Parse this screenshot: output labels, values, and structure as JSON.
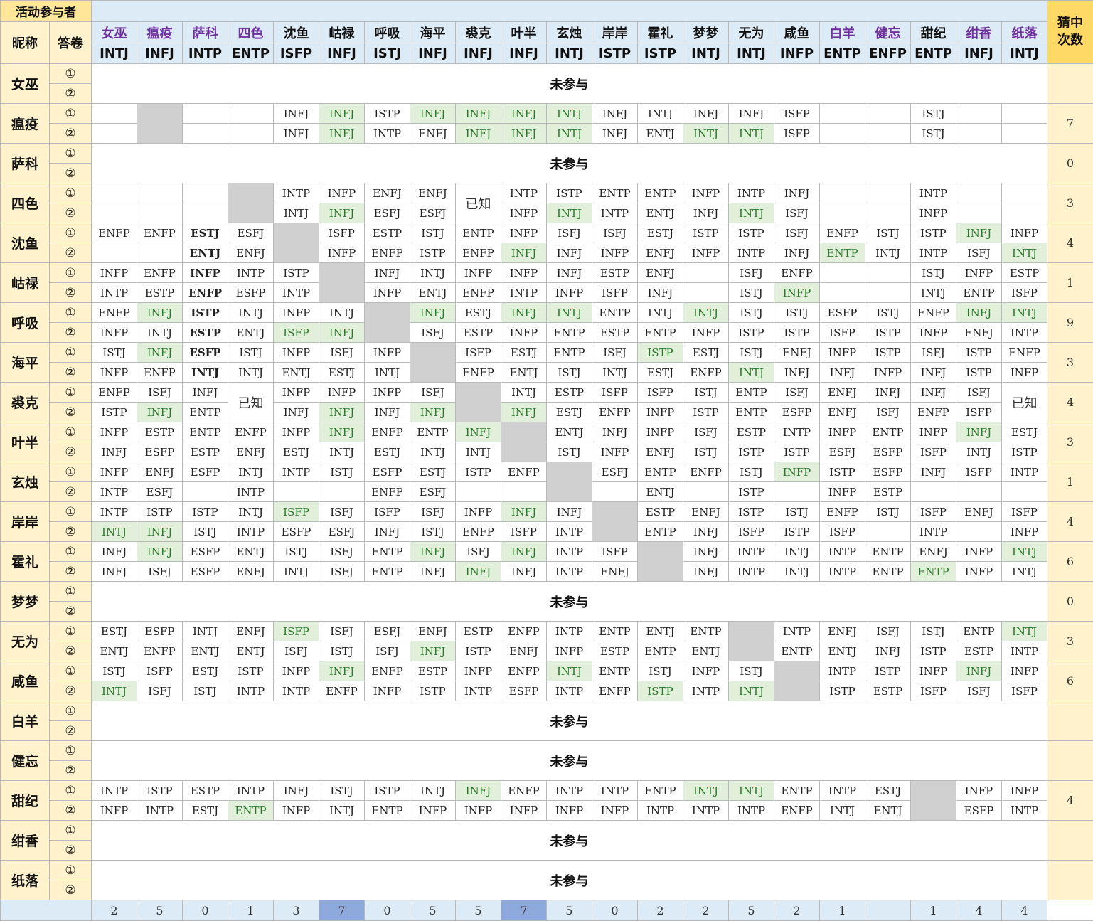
{
  "header": {
    "participants_title": "活动参与者",
    "nickname_label": "昵称",
    "answer_label": "答卷",
    "guess_label_line1": "猜中",
    "guess_label_line2": "次数",
    "absent_text": "未参与",
    "known_text": "已知",
    "answer_marks": [
      "①",
      "②"
    ]
  },
  "columns": [
    {
      "name": "女巫",
      "type": "INTJ",
      "purple": true
    },
    {
      "name": "瘟疫",
      "type": "INFJ",
      "purple": true
    },
    {
      "name": "萨科",
      "type": "INTP",
      "purple": true
    },
    {
      "name": "四色",
      "type": "ENTP",
      "purple": true
    },
    {
      "name": "沈鱼",
      "type": "ISFP",
      "purple": false
    },
    {
      "name": "岵禄",
      "type": "INFJ",
      "purple": false
    },
    {
      "name": "呼吸",
      "type": "ISTJ",
      "purple": false
    },
    {
      "name": "海平",
      "type": "INFJ",
      "purple": false
    },
    {
      "name": "裘克",
      "type": "INFJ",
      "purple": false
    },
    {
      "name": "叶半",
      "type": "INFJ",
      "purple": false
    },
    {
      "name": "玄烛",
      "type": "INTJ",
      "purple": false
    },
    {
      "name": "岸岸",
      "type": "ISTP",
      "purple": false
    },
    {
      "name": "霍礼",
      "type": "ISTP",
      "purple": false
    },
    {
      "name": "梦梦",
      "type": "INTJ",
      "purple": false
    },
    {
      "name": "无为",
      "type": "INTJ",
      "purple": false
    },
    {
      "name": "咸鱼",
      "type": "INFP",
      "purple": false
    },
    {
      "name": "白羊",
      "type": "ENTP",
      "purple": true
    },
    {
      "name": "健忘",
      "type": "ENFP",
      "purple": true
    },
    {
      "name": "甜纪",
      "type": "ENTP",
      "purple": false
    },
    {
      "name": "绀香",
      "type": "INFJ",
      "purple": true
    },
    {
      "name": "纸落",
      "type": "INTJ",
      "purple": true
    }
  ],
  "rows": [
    {
      "name": "女巫",
      "absent": true,
      "guess": ""
    },
    {
      "name": "瘟疫",
      "guess": "7",
      "self": 1,
      "a1": [
        "",
        "",
        "",
        "",
        "INFJ",
        "INFJ",
        "ISTP",
        "INFJ",
        "INFJ",
        "INFJ",
        "INTJ",
        "INFJ",
        "INTJ",
        "INFJ",
        "INFJ",
        "ISFP",
        "",
        "",
        "ISTJ",
        "",
        ""
      ],
      "a2": [
        "",
        "",
        "",
        "",
        "INFJ",
        "INFJ",
        "INTP",
        "ENFJ",
        "INFJ",
        "INFJ",
        "INTJ",
        "INFJ",
        "ENTJ",
        "INTJ",
        "INTJ",
        "ISFP",
        "",
        "",
        "ISTJ",
        "",
        ""
      ]
    },
    {
      "name": "萨科",
      "absent": true,
      "guess": "0"
    },
    {
      "name": "四色",
      "guess": "3",
      "self": 3,
      "known": [
        8
      ],
      "a1": [
        "",
        "",
        "",
        "",
        "INTP",
        "INFP",
        "ENFJ",
        "ENFJ",
        "",
        "INTP",
        "ISTP",
        "ENTP",
        "ENTP",
        "INFP",
        "INTP",
        "INFJ",
        "",
        "",
        "INTP",
        "",
        ""
      ],
      "a2": [
        "",
        "",
        "",
        "",
        "INTJ",
        "INFJ",
        "ESFJ",
        "ESFJ",
        "",
        "INFP",
        "INTJ",
        "INTP",
        "ENTJ",
        "INFJ",
        "INTJ",
        "ISFJ",
        "",
        "",
        "INFP",
        "",
        ""
      ]
    },
    {
      "name": "沈鱼",
      "guess": "4",
      "self": 4,
      "a1": [
        "ENFP",
        "ENFP",
        "ESTJ",
        "ESFJ",
        "",
        "ISFP",
        "ESTP",
        "ISTJ",
        "ENTP",
        "INFP",
        "ISFJ",
        "ISFJ",
        "ESTJ",
        "ISTP",
        "ISTP",
        "ISFJ",
        "ENFP",
        "ISTJ",
        "ISTP",
        "INFJ",
        "INFP"
      ],
      "a2": [
        "",
        "",
        "ENTJ",
        "ENFJ",
        "",
        "INFP",
        "ENFP",
        "ISTP",
        "ENFP",
        "INFJ",
        "INFJ",
        "INFP",
        "ENFJ",
        "INFP",
        "INTP",
        "INFJ",
        "ENTP",
        "INTJ",
        "INTP",
        "ISFJ",
        "INTJ"
      ]
    },
    {
      "name": "岵禄",
      "guess": "1",
      "self": 5,
      "a1": [
        "INFP",
        "ENFP",
        "INFP",
        "INTP",
        "ISTP",
        "",
        "INFJ",
        "INTJ",
        "INFP",
        "INFP",
        "INFJ",
        "ESTP",
        "ENFJ",
        "",
        "ISFJ",
        "ENFP",
        "",
        "",
        "ISTJ",
        "INFP",
        "ESTP"
      ],
      "a2": [
        "INTP",
        "ESTP",
        "ENFP",
        "ESFP",
        "INTP",
        "",
        "INFP",
        "ENTJ",
        "ENFP",
        "INTP",
        "INFP",
        "ISFP",
        "INFJ",
        "",
        "ISTJ",
        "INFP",
        "",
        "",
        "INTJ",
        "ENTP",
        "ISFP"
      ]
    },
    {
      "name": "呼吸",
      "guess": "9",
      "self": 6,
      "a1": [
        "ENFP",
        "INFJ",
        "ISTP",
        "INTJ",
        "INFP",
        "INTJ",
        "",
        "INFJ",
        "ESTJ",
        "INFJ",
        "INTJ",
        "ENTP",
        "INTJ",
        "INTJ",
        "ISTJ",
        "ISTJ",
        "ESFP",
        "ISTJ",
        "ENFP",
        "INFJ",
        "INTJ"
      ],
      "a2": [
        "INFP",
        "INTJ",
        "ESTP",
        "ENTJ",
        "ISFP",
        "INFJ",
        "",
        "ISFJ",
        "ESTP",
        "INFP",
        "ENTP",
        "ESTP",
        "ENTP",
        "INFP",
        "ISTP",
        "ISTP",
        "ISFP",
        "ISTP",
        "INFP",
        "ENFJ",
        "INTP"
      ]
    },
    {
      "name": "海平",
      "guess": "3",
      "self": 7,
      "a1": [
        "ISTJ",
        "INFJ",
        "ESFP",
        "ISTJ",
        "INFP",
        "ISFJ",
        "INFP",
        "",
        "ISFP",
        "ESTJ",
        "ENTP",
        "ISFJ",
        "ISTP",
        "ESTJ",
        "ISTJ",
        "ENFJ",
        "INFP",
        "ISTP",
        "ISFJ",
        "ISTP",
        "ENFP"
      ],
      "a2": [
        "INFP",
        "ENFP",
        "INTJ",
        "INTJ",
        "ENTJ",
        "ESTJ",
        "INTJ",
        "",
        "ENFP",
        "ENTJ",
        "ISTJ",
        "INTJ",
        "ESTJ",
        "ENFP",
        "INTJ",
        "INFJ",
        "INFJ",
        "INFP",
        "INFJ",
        "ISTP",
        "INFP"
      ]
    },
    {
      "name": "裘克",
      "guess": "4",
      "self": 8,
      "known": [
        3,
        20
      ],
      "a1": [
        "ENFP",
        "ISFJ",
        "INFJ",
        "",
        "INFP",
        "INFP",
        "INFP",
        "ISFJ",
        "",
        "INTJ",
        "ESTP",
        "ISFP",
        "ISFP",
        "ISTJ",
        "ENTP",
        "ISFJ",
        "ENFJ",
        "INFJ",
        "INFJ",
        "ISFJ",
        ""
      ],
      "a2": [
        "ISTP",
        "INFJ",
        "ENTP",
        "",
        "INFJ",
        "INFJ",
        "INFJ",
        "INFJ",
        "",
        "INFJ",
        "ESTJ",
        "ENFP",
        "INFP",
        "ISTP",
        "ENTP",
        "ESFP",
        "ENFJ",
        "ISFJ",
        "ENFP",
        "ISFP",
        ""
      ]
    },
    {
      "name": "叶半",
      "guess": "3",
      "self": 9,
      "a1": [
        "INFP",
        "ESTP",
        "ENTP",
        "ENFP",
        "INFP",
        "INFJ",
        "ENFP",
        "ENTP",
        "INFJ",
        "",
        "ENTJ",
        "INFJ",
        "INFP",
        "ISFJ",
        "ESTP",
        "INTP",
        "INFP",
        "ENTP",
        "INFP",
        "INFJ",
        "ESTJ"
      ],
      "a2": [
        "INFJ",
        "ESFP",
        "ESTP",
        "ENFJ",
        "ESTJ",
        "INTJ",
        "ESTJ",
        "INTJ",
        "INTJ",
        "",
        "ISTJ",
        "INFP",
        "ENFJ",
        "ISTJ",
        "ISTP",
        "ISTP",
        "ESFJ",
        "ESFP",
        "ISFP",
        "INTJ",
        "ISTP"
      ]
    },
    {
      "name": "玄烛",
      "guess": "1",
      "self": 10,
      "a1": [
        "INFP",
        "ENFJ",
        "ESFP",
        "INTJ",
        "INTP",
        "ISTJ",
        "ESFP",
        "ESTJ",
        "ISTP",
        "ENFP",
        "",
        "ESFJ",
        "ENTP",
        "ENFP",
        "ISTJ",
        "INFP",
        "ISTP",
        "ESFP",
        "INFJ",
        "ISFP",
        "INTP"
      ],
      "a2": [
        "INTP",
        "ESFJ",
        "",
        "INTP",
        "",
        "",
        "ENFP",
        "ESFJ",
        "",
        "",
        "",
        "",
        "ENTJ",
        "",
        "ISTP",
        "",
        "INFP",
        "ESTP",
        "",
        "",
        ""
      ]
    },
    {
      "name": "岸岸",
      "guess": "4",
      "self": 11,
      "a1": [
        "INTP",
        "ISTP",
        "ISTP",
        "INTJ",
        "ISFP",
        "ISFJ",
        "ISFP",
        "ISFJ",
        "INFP",
        "INFJ",
        "INFJ",
        "",
        "ESTP",
        "ENFJ",
        "ISTP",
        "ISTJ",
        "ENFP",
        "ISTJ",
        "ISFP",
        "ENFJ",
        "ISFP"
      ],
      "a2": [
        "INTJ",
        "INFJ",
        "ISTJ",
        "INTP",
        "ESFP",
        "ESFJ",
        "INFJ",
        "ISTJ",
        "ENFP",
        "ISFP",
        "INTP",
        "",
        "ENTP",
        "INFJ",
        "ISFP",
        "ISTP",
        "ISFP",
        "",
        "INTP",
        "",
        "INFP"
      ]
    },
    {
      "name": "霍礼",
      "guess": "6",
      "self": 12,
      "a1": [
        "INFJ",
        "INFJ",
        "ESFP",
        "ENTJ",
        "ISTJ",
        "ISFJ",
        "ENTP",
        "INFJ",
        "ISFJ",
        "INFJ",
        "INTP",
        "ISFP",
        "",
        "INFJ",
        "INTP",
        "INTJ",
        "INTP",
        "ENTP",
        "ENFJ",
        "INFP",
        "INTJ"
      ],
      "a2": [
        "INFJ",
        "ISFJ",
        "ESFP",
        "ENFJ",
        "INTJ",
        "ISFJ",
        "ENTP",
        "INFJ",
        "INFJ",
        "INFJ",
        "INTP",
        "ENFJ",
        "",
        "INFJ",
        "INTP",
        "INTJ",
        "INTP",
        "ENTP",
        "ENTP",
        "INFP",
        "INTJ"
      ]
    },
    {
      "name": "梦梦",
      "absent": true,
      "guess": "0"
    },
    {
      "name": "无为",
      "guess": "3",
      "self": 14,
      "a1": [
        "ESTJ",
        "ESFP",
        "INTJ",
        "ENFJ",
        "ISFP",
        "ISFJ",
        "ESFJ",
        "ENFJ",
        "ESTP",
        "ENFP",
        "INTP",
        "ENTP",
        "ENTJ",
        "ENTP",
        "",
        "INTP",
        "ENFJ",
        "ISFJ",
        "ISTJ",
        "ENTP",
        "INTJ"
      ],
      "a2": [
        "ENTJ",
        "ENFP",
        "ENTJ",
        "ENTJ",
        "ISFJ",
        "ISTJ",
        "ISFJ",
        "INFJ",
        "ISTP",
        "ENFJ",
        "INFP",
        "ESTP",
        "ENTP",
        "ENTJ",
        "",
        "ENTP",
        "ENTJ",
        "INFJ",
        "ISTP",
        "ESTP",
        "INTP"
      ]
    },
    {
      "name": "咸鱼",
      "guess": "6",
      "self": 15,
      "a1": [
        "ISTJ",
        "ISFP",
        "ESTJ",
        "ISTP",
        "INFP",
        "INFJ",
        "ENFP",
        "ESTP",
        "INFP",
        "ENFP",
        "INTJ",
        "ENTP",
        "ISTJ",
        "INFP",
        "ISTJ",
        "",
        "INTP",
        "ISTP",
        "INFP",
        "INFJ",
        "INFP"
      ],
      "a2": [
        "INTJ",
        "ISFJ",
        "ISTJ",
        "INTP",
        "INTP",
        "ENFP",
        "INFP",
        "ISTP",
        "INTP",
        "ESFP",
        "INTP",
        "ENFP",
        "ISTP",
        "INTP",
        "INTJ",
        "",
        "ISTP",
        "ESTP",
        "ISFP",
        "ISFJ",
        "ISFP"
      ]
    },
    {
      "name": "白羊",
      "absent": true,
      "guess": ""
    },
    {
      "name": "健忘",
      "absent": true,
      "guess": ""
    },
    {
      "name": "甜纪",
      "guess": "4",
      "self": 18,
      "a1": [
        "INTP",
        "ISTP",
        "ESTP",
        "INTP",
        "INFJ",
        "ISTJ",
        "ISTP",
        "INTJ",
        "INFJ",
        "ENFP",
        "INTP",
        "INTP",
        "ENTP",
        "INTJ",
        "INTJ",
        "ENTP",
        "INTP",
        "ESTJ",
        "",
        "INFP",
        "INFP"
      ],
      "a2": [
        "INFP",
        "INTP",
        "ESTJ",
        "ENTP",
        "INFP",
        "INTJ",
        "ENTP",
        "INFP",
        "INFP",
        "INFP",
        "INFP",
        "INFP",
        "INTP",
        "INTP",
        "INTP",
        "ENFP",
        "INTJ",
        "ENTJ",
        "",
        "ESFP",
        "INTP"
      ]
    },
    {
      "name": "绀香",
      "absent": true,
      "guess": ""
    },
    {
      "name": "纸落",
      "absent": true,
      "guess": ""
    }
  ],
  "bold_row_col": 2,
  "bold_rows": [
    "沈鱼",
    "岵禄",
    "呼吸",
    "海平"
  ],
  "hit_cells": [
    "1-0-5",
    "1-0-7",
    "1-0-8",
    "1-0-9",
    "1-0-10",
    "1-1-5",
    "1-1-8",
    "1-1-9",
    "1-1-10",
    "1-1-13",
    "1-1-14",
    "3-1-5",
    "3-1-10",
    "3-1-14",
    "4-0-19",
    "4-1-9",
    "4-1-16",
    "4-1-20",
    "5-1-15",
    "6-0-1",
    "6-0-7",
    "6-0-9",
    "6-0-10",
    "6-0-13",
    "6-0-19",
    "6-0-20",
    "6-1-4",
    "6-1-5",
    "7-0-1",
    "7-0-12",
    "7-1-14",
    "8-1-1",
    "8-1-5",
    "8-1-7",
    "8-1-9",
    "9-0-5",
    "9-0-8",
    "9-0-19",
    "10-0-15",
    "11-0-4",
    "11-0-9",
    "11-1-0",
    "11-1-1",
    "12-0-1",
    "12-0-7",
    "12-0-9",
    "12-0-20",
    "12-1-8",
    "12-1-18",
    "14-0-4",
    "14-0-20",
    "14-1-7",
    "15-0-5",
    "15-0-10",
    "15-0-19",
    "15-1-0",
    "15-1-12",
    "15-1-14",
    "18-0-8",
    "18-0-13",
    "18-0-14",
    "18-1-3"
  ],
  "footer": {
    "totals": [
      "2",
      "5",
      "0",
      "1",
      "3",
      "7",
      "0",
      "5",
      "5",
      "7",
      "5",
      "0",
      "2",
      "2",
      "5",
      "2",
      "1",
      "",
      "1",
      "4",
      "4"
    ],
    "highlight_cols": [
      5,
      9
    ]
  }
}
